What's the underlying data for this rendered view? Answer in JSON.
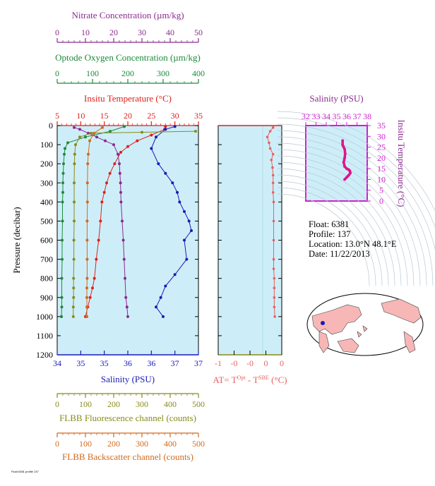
{
  "top_axes": {
    "nitrate": {
      "title": "Nitrate Concentration (µm/kg)",
      "ticks": [
        "0",
        "10",
        "20",
        "30",
        "40",
        "50"
      ],
      "color": "#8b2a8f"
    },
    "oxygen": {
      "title": "Optode Oxygen Concentration (µm/kg)",
      "ticks": [
        "0",
        "100",
        "200",
        "300",
        "400"
      ],
      "color": "#1c8a3a"
    },
    "temperature": {
      "title": "Insitu Temperature (°C)",
      "ticks": [
        "5",
        "10",
        "15",
        "20",
        "25",
        "30",
        "35"
      ],
      "color": "#e0201a"
    }
  },
  "left_axis": {
    "title": "Pressure (decibar)",
    "ticks": [
      "0",
      "100",
      "200",
      "300",
      "400",
      "500",
      "600",
      "700",
      "800",
      "900",
      "1000",
      "1100",
      "1200"
    ]
  },
  "bottom_axes": {
    "salinity": {
      "title": "Salinity (PSU)",
      "ticks": [
        "34",
        "35",
        "35",
        "36",
        "36",
        "37",
        "37"
      ],
      "color": "#1a1ab8"
    },
    "fluorescence": {
      "title": "FLBB Fluorescence channel (counts)",
      "ticks": [
        "0",
        "100",
        "200",
        "300",
        "400",
        "500"
      ],
      "color": "#8a8a1a"
    },
    "backscatter": {
      "title": "FLBB Backscatter channel (counts)",
      "ticks": [
        "0",
        "100",
        "200",
        "300",
        "400",
        "500"
      ],
      "color": "#d2691e"
    }
  },
  "at_axis": {
    "ticks": [
      "-1",
      "-0",
      "-0",
      "0",
      "0"
    ],
    "label_prefix": "AT= T",
    "sup1": "Opt",
    "mid": " - T",
    "sup2": "SBE",
    "label_suffix": " (°C)",
    "color": "#e86060"
  },
  "ts_axes": {
    "top_title": "Salinity (PSU)",
    "top_ticks": [
      "32",
      "33",
      "34",
      "35",
      "36",
      "37",
      "38"
    ],
    "right_title": "Insitu Temperature (°C)",
    "right_ticks": [
      "0",
      "5",
      "10",
      "15",
      "20",
      "25",
      "30",
      "35"
    ],
    "title_color": "#8b2a8f",
    "axis_color": "#d020d0"
  },
  "info": {
    "float": "Float:  6381",
    "profile": "Profile:  137",
    "location": "Location:  13.0°N  48.1°E",
    "date": "Date:  11/22/2013"
  },
  "footnote": "Float 6381 profile 137",
  "chart_data": [
    {
      "type": "line",
      "xlabel": "",
      "ylabel": "Pressure (decibar)",
      "ylim": [
        0,
        1200
      ],
      "series": [
        {
          "name": "Nitrate Concentration (µm/kg)",
          "color": "#8b2a8f",
          "xlim": [
            0,
            50
          ],
          "x": [
            6,
            8,
            11,
            14,
            17,
            20,
            21.5,
            22,
            22.2,
            22.4,
            22.5,
            22.6,
            23,
            23.4,
            23.7,
            24,
            24.3,
            24.7,
            25
          ],
          "y": [
            10,
            20,
            40,
            60,
            80,
            100,
            150,
            200,
            250,
            300,
            350,
            400,
            500,
            600,
            700,
            800,
            900,
            950,
            1000
          ]
        },
        {
          "name": "Optode Oxygen Concentration (µm/kg)",
          "color": "#1c8a3a",
          "xlim": [
            0,
            400
          ],
          "x": [
            190,
            150,
            80,
            30,
            22,
            20,
            18,
            17,
            16,
            16,
            15,
            15,
            14,
            14,
            13,
            13,
            13,
            12,
            12
          ],
          "y": [
            5,
            30,
            60,
            90,
            120,
            150,
            200,
            250,
            300,
            350,
            400,
            500,
            600,
            700,
            800,
            900,
            950,
            1000,
            1000
          ]
        },
        {
          "name": "Insitu Temperature (°C)",
          "color": "#e0201a",
          "xlim": [
            5,
            35
          ],
          "x": [
            28,
            27.8,
            25,
            22,
            20,
            18.5,
            17.2,
            16.2,
            15.5,
            15,
            14.5,
            14.2,
            13.8,
            13.3,
            12.9,
            12.5,
            12,
            11.5,
            11
          ],
          "y": [
            5,
            20,
            50,
            80,
            110,
            140,
            200,
            250,
            300,
            350,
            400,
            500,
            600,
            700,
            800,
            850,
            900,
            950,
            1000
          ]
        },
        {
          "name": "Salinity (PSU)",
          "color": "#1a1ab8",
          "xlim": [
            34,
            37
          ],
          "x": [
            36.5,
            36.3,
            36.1,
            36.0,
            36.15,
            36.3,
            36.45,
            36.55,
            36.6,
            36.7,
            36.8,
            36.85,
            36.7,
            36.75,
            36.5,
            36.3,
            36.2,
            36.1,
            36.25
          ],
          "y": [
            5,
            20,
            60,
            120,
            200,
            250,
            300,
            350,
            400,
            450,
            500,
            550,
            600,
            700,
            780,
            840,
            900,
            950,
            1000
          ]
        },
        {
          "name": "FLBB Fluorescence channel (counts)",
          "color": "#8a8a1a",
          "xlim": [
            0,
            500
          ],
          "x": [
            490,
            300,
            120,
            80,
            65,
            62,
            61,
            60,
            60,
            60,
            59,
            59,
            58,
            58,
            58,
            57,
            57
          ],
          "y": [
            30,
            35,
            40,
            60,
            100,
            150,
            200,
            300,
            400,
            500,
            600,
            700,
            800,
            850,
            900,
            950,
            1000
          ]
        },
        {
          "name": "FLBB Backscatter channel (counts)",
          "color": "#d2691e",
          "xlim": [
            0,
            500
          ],
          "x": [
            160,
            130,
            115,
            110,
            108,
            107,
            107,
            106,
            106,
            106,
            106,
            105,
            105,
            105,
            105,
            105
          ],
          "y": [
            10,
            40,
            80,
            150,
            200,
            300,
            400,
            500,
            600,
            700,
            800,
            850,
            900,
            950,
            1000,
            1000
          ]
        }
      ]
    },
    {
      "type": "line",
      "xlabel": "AT= TOpt - TSBE (°C)",
      "xlim": [
        -1,
        0.1
      ],
      "ylim": [
        0,
        1200
      ],
      "series": [
        {
          "name": "AT",
          "color": "#e86060",
          "x": [
            -0.05,
            -0.1,
            -0.15,
            -0.12,
            -0.1,
            -0.05,
            -0.08,
            -0.06,
            -0.05,
            -0.05,
            -0.05,
            -0.04,
            -0.04,
            -0.04,
            -0.04,
            -0.04,
            -0.03,
            -0.03,
            -0.03,
            -0.03,
            -0.02
          ],
          "y": [
            10,
            30,
            60,
            90,
            120,
            150,
            180,
            220,
            260,
            300,
            350,
            400,
            500,
            600,
            700,
            750,
            800,
            850,
            900,
            950,
            1000
          ]
        }
      ]
    },
    {
      "type": "line",
      "xlabel": "Salinity (PSU)",
      "ylabel": "Insitu Temperature (°C)",
      "xlim": [
        32,
        38
      ],
      "ylim": [
        0,
        35
      ],
      "series": [
        {
          "name": "T-S",
          "color": "#e0148c",
          "x": [
            35.6,
            35.6,
            35.7,
            35.8,
            35.85,
            35.8,
            35.7,
            35.8,
            36.0,
            36.2,
            36.3,
            36.35,
            36.2,
            36.0,
            35.8
          ],
          "y": [
            28,
            26,
            25,
            24,
            22,
            20,
            18,
            16,
            15,
            14.5,
            14,
            13,
            12,
            11,
            10
          ]
        }
      ]
    }
  ]
}
